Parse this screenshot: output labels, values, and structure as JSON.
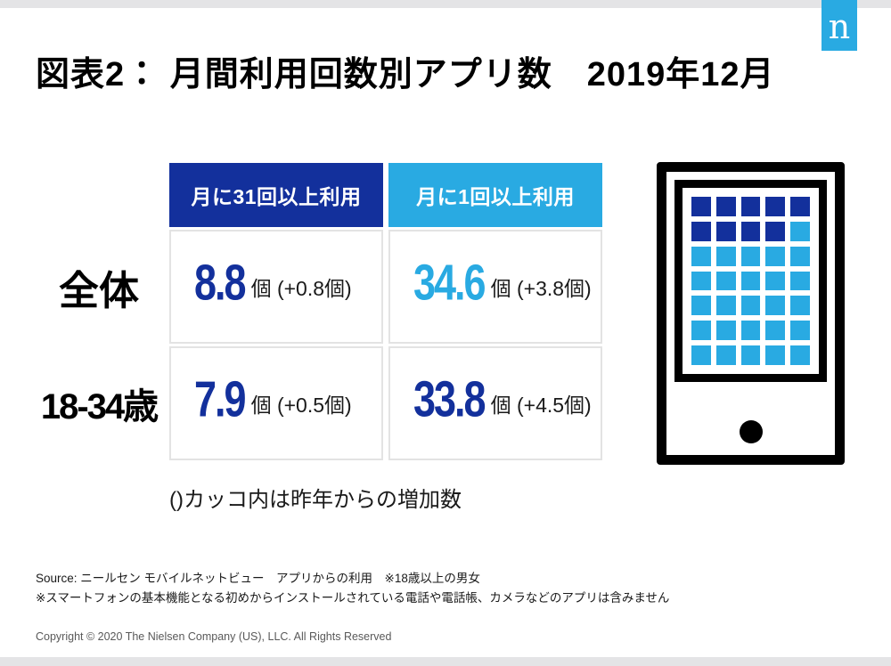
{
  "page": {
    "title": "図表2： 月間利用回数別アプリ数　2019年12月",
    "logo_letter": "n"
  },
  "colors": {
    "dark_blue": "#13309c",
    "light_blue": "#29aae2",
    "strip_gray": "#e4e4e6"
  },
  "table": {
    "headers": [
      "月に31回以上利用",
      "月に1回以上利用"
    ],
    "rows": [
      {
        "label": "全体",
        "cells": [
          {
            "value": "8.8",
            "suffix": "個 (+0.8個)",
            "tone": "dark"
          },
          {
            "value": "34.6",
            "suffix": "個 (+3.8個)",
            "tone": "light"
          }
        ]
      },
      {
        "label": "18-34歳",
        "cells": [
          {
            "value": "7.9",
            "suffix": "個 (+0.5個)",
            "tone": "dark"
          },
          {
            "value": "33.8",
            "suffix": "個 (+4.5個)",
            "tone": "dark"
          }
        ]
      }
    ],
    "note": "()カッコ内は昨年からの増加数"
  },
  "phone": {
    "grid": [
      "ddddd",
      "ddddl",
      "lllll",
      "lllll",
      "lllll",
      "lllll",
      "lllll"
    ]
  },
  "footer": {
    "source_line1": "Source: ニールセン モバイルネットビュー　アプリからの利用　※18歳以上の男女",
    "source_line2": "※スマートフォンの基本機能となる初めからインストールされている電話や電話帳、カメラなどのアプリは含みません",
    "copyright": "Copyright © 2020 The Nielsen Company (US), LLC. All Rights Reserved"
  },
  "chart_data": {
    "type": "table",
    "title": "図表2： 月間利用回数別アプリ数　2019年12月",
    "columns": [
      "月に31回以上利用",
      "月に1回以上利用"
    ],
    "rows": [
      {
        "label": "全体",
        "values": [
          8.8,
          34.6
        ],
        "yoy_change": [
          0.8,
          3.8
        ]
      },
      {
        "label": "18-34歳",
        "values": [
          7.9,
          33.8
        ],
        "yoy_change": [
          0.5,
          4.5
        ]
      }
    ],
    "unit": "個",
    "note": "()カッコ内は昨年からの増加数",
    "phone_icon_squares": {
      "dark": 9,
      "light": 26,
      "grid": "5x7"
    }
  }
}
